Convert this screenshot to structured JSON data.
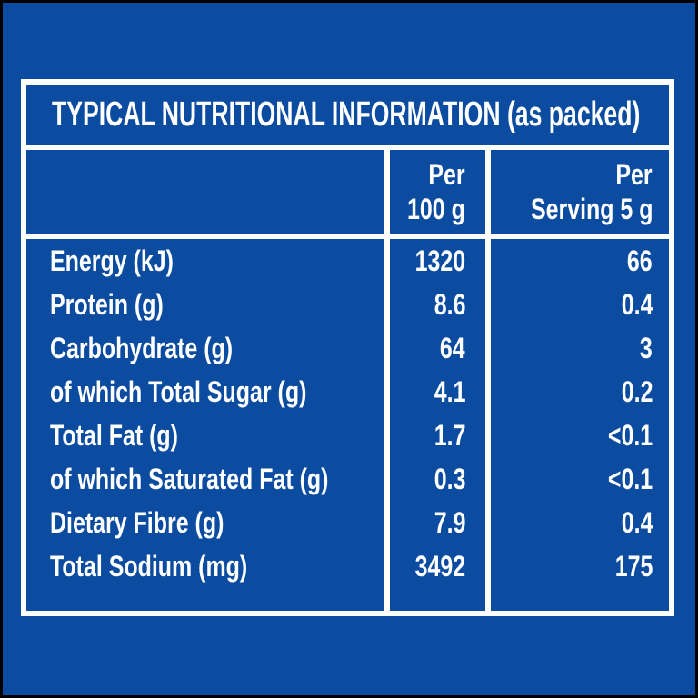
{
  "colors": {
    "background": "#0c4ca0",
    "frame": "#000000",
    "table_border": "#ffffff",
    "text": "#ffffff"
  },
  "table": {
    "title": "TYPICAL NUTRITIONAL INFORMATION (as packed)",
    "columns": {
      "per100_line1": "Per",
      "per100_line2": "100 g",
      "serving_line1": "Per",
      "serving_line2": "Serving 5 g"
    },
    "rows": [
      {
        "label": "Energy (kJ)",
        "per_100g": "1320",
        "per_serving": "66"
      },
      {
        "label": "Protein (g)",
        "per_100g": "8.6",
        "per_serving": "0.4"
      },
      {
        "label": "Carbohydrate (g)",
        "per_100g": "64",
        "per_serving": "3"
      },
      {
        "label": "of which Total Sugar (g)",
        "per_100g": "4.1",
        "per_serving": "0.2"
      },
      {
        "label": "Total Fat (g)",
        "per_100g": "1.7",
        "per_serving": "<0.1"
      },
      {
        "label": "of which Saturated Fat (g)",
        "per_100g": "0.3",
        "per_serving": "<0.1"
      },
      {
        "label": "Dietary Fibre (g)",
        "per_100g": "7.9",
        "per_serving": "0.4"
      },
      {
        "label": "Total Sodium (mg)",
        "per_100g": "3492",
        "per_serving": "175"
      }
    ]
  }
}
